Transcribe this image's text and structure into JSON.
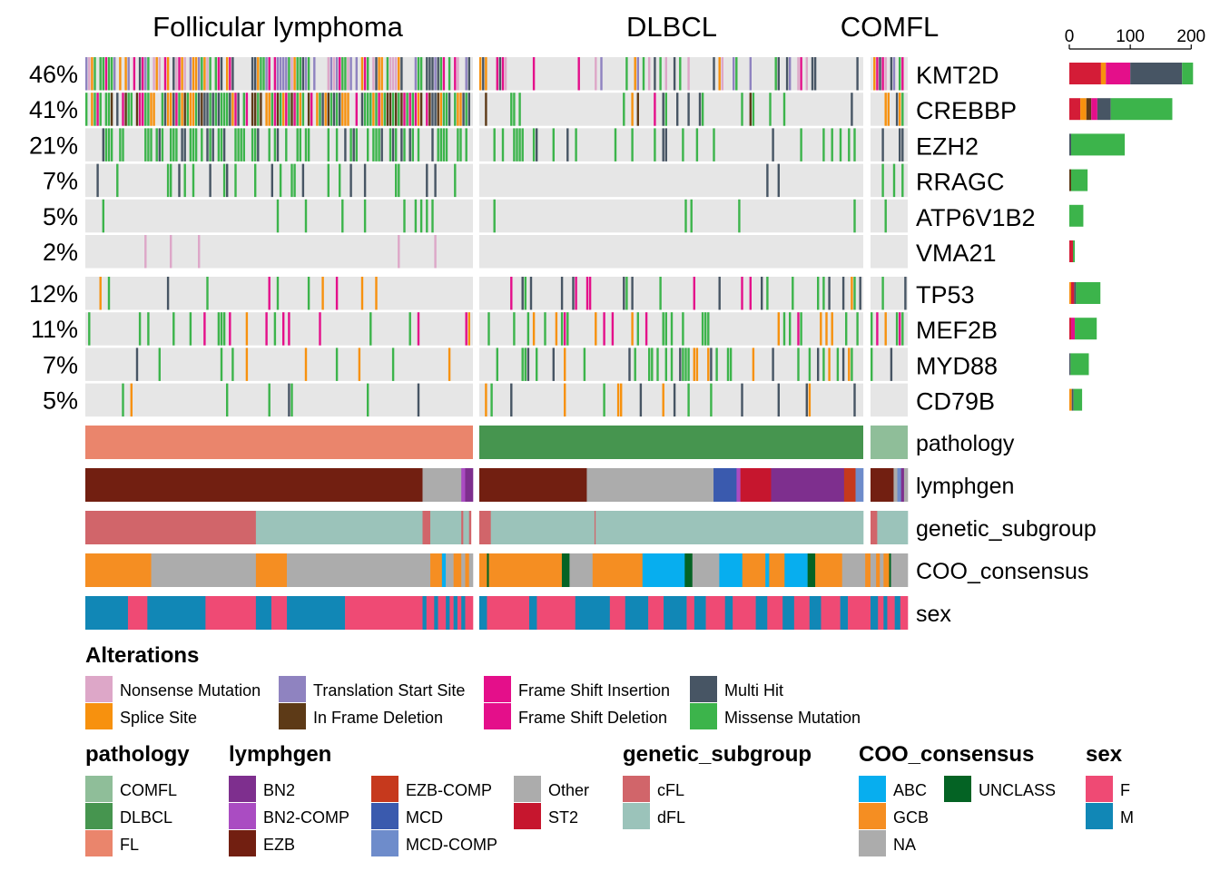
{
  "chart_data": {
    "type": "heatmap",
    "title": "",
    "column_groups": [
      "Follicular lymphoma",
      "DLBCL",
      "COMFL"
    ],
    "gene_blocks": [
      {
        "genes": [
          "KMT2D",
          "CREBBP",
          "EZH2",
          "RRAGC",
          "ATP6V1B2",
          "VMA21"
        ],
        "percent_labels": [
          "46%",
          "41%",
          "21%",
          "7%",
          "5%",
          "2%"
        ]
      },
      {
        "genes": [
          "TP53",
          "MEF2B",
          "MYD88",
          "CD79B"
        ],
        "percent_labels": [
          "12%",
          "11%",
          "7%",
          "5%"
        ]
      }
    ],
    "bar_axis": {
      "ticks": [
        0,
        100,
        200
      ],
      "tick_labels": [
        "0",
        "100",
        "200"
      ],
      "max": 210
    },
    "bar_counts": [
      {
        "gene": "KMT2D",
        "segments": [
          {
            "alteration": "Nonsense Mutation",
            "value": 0
          },
          {
            "alteration": "Missense Mutation",
            "value": 0
          },
          {
            "alteration": "Frame Shift Insertion",
            "value": 0
          },
          {
            "alteration": "Translation Start Site",
            "value": 0
          }
        ],
        "stack": [
          {
            "alteration": "ST2_red",
            "value": 52
          },
          {
            "alteration": "Splice Site",
            "value": 8
          },
          {
            "alteration": "Frame Shift Deletion",
            "value": 40
          },
          {
            "alteration": "Multi Hit",
            "value": 85
          },
          {
            "alteration": "Missense Mutation",
            "value": 18
          }
        ]
      },
      {
        "gene": "CREBBP",
        "stack": [
          {
            "alteration": "ST2_red",
            "value": 18
          },
          {
            "alteration": "Splice Site",
            "value": 10
          },
          {
            "alteration": "In Frame Deletion",
            "value": 8
          },
          {
            "alteration": "Frame Shift Deletion",
            "value": 10
          },
          {
            "alteration": "Multi Hit",
            "value": 22
          },
          {
            "alteration": "Missense Mutation",
            "value": 101
          }
        ]
      },
      {
        "gene": "EZH2",
        "stack": [
          {
            "alteration": "Multi Hit",
            "value": 3
          },
          {
            "alteration": "Missense Mutation",
            "value": 88
          }
        ]
      },
      {
        "gene": "RRAGC",
        "stack": [
          {
            "alteration": "In Frame Deletion",
            "value": 3
          },
          {
            "alteration": "Missense Mutation",
            "value": 27
          }
        ]
      },
      {
        "gene": "ATP6V1B2",
        "stack": [
          {
            "alteration": "Missense Mutation",
            "value": 23
          }
        ]
      },
      {
        "gene": "VMA21",
        "stack": [
          {
            "alteration": "ST2_red",
            "value": 6
          },
          {
            "alteration": "Missense Mutation",
            "value": 3
          }
        ]
      },
      {
        "gene": "TP53",
        "stack": [
          {
            "alteration": "Splice Site",
            "value": 3
          },
          {
            "alteration": "ST2_red",
            "value": 5
          },
          {
            "alteration": "Multi Hit",
            "value": 3
          },
          {
            "alteration": "Missense Mutation",
            "value": 40
          }
        ]
      },
      {
        "gene": "MEF2B",
        "stack": [
          {
            "alteration": "ST2_red",
            "value": 3
          },
          {
            "alteration": "Frame Shift Deletion",
            "value": 6
          },
          {
            "alteration": "Missense Mutation",
            "value": 36
          }
        ]
      },
      {
        "gene": "MYD88",
        "stack": [
          {
            "alteration": "Multi Hit",
            "value": 2
          },
          {
            "alteration": "Missense Mutation",
            "value": 30
          }
        ]
      },
      {
        "gene": "CD79B",
        "stack": [
          {
            "alteration": "Splice Site",
            "value": 4
          },
          {
            "alteration": "Multi Hit",
            "value": 3
          },
          {
            "alteration": "Missense Mutation",
            "value": 14
          }
        ]
      }
    ],
    "annotation_tracks": [
      "pathology",
      "lymphgen",
      "genetic_subgroup",
      "COO_consensus",
      "sex"
    ],
    "annotation_segments": {
      "pathology": [
        [
          "FL",
          "DLBCL",
          "COMFL"
        ]
      ],
      "lymphgen": [
        [
          [
            "EZB",
            0.87
          ],
          [
            "Other",
            0.1
          ],
          [
            "BN2-COMP",
            0.01
          ],
          [
            "BN2",
            0.02
          ]
        ],
        [
          [
            "EZB",
            0.28
          ],
          [
            "Other",
            0.33
          ],
          [
            "MCD",
            0.06
          ],
          [
            "BN2-COMP",
            0.01
          ],
          [
            "ST2",
            0.08
          ],
          [
            "BN2",
            0.19
          ],
          [
            "EZB-COMP",
            0.03
          ],
          [
            "MCD-COMP",
            0.02
          ]
        ],
        [
          [
            "EZB",
            0.62
          ],
          [
            "Other",
            0.1
          ],
          [
            "MCD-COMP",
            0.1
          ],
          [
            "BN2",
            0.08
          ],
          [
            "Other",
            0.1
          ]
        ]
      ],
      "genetic_subgroup": [
        [
          [
            "cFL",
            0.44
          ],
          [
            "dFL",
            0.43
          ],
          [
            "cFL",
            0.02
          ],
          [
            "dFL",
            0.08
          ],
          [
            "cFL",
            0.005
          ],
          [
            "dFL",
            0.015
          ],
          [
            "cFL",
            0.005
          ]
        ],
        [
          [
            "cFL",
            0.03
          ],
          [
            "dFL",
            0.27
          ],
          [
            "cFL",
            0.003
          ],
          [
            "dFL",
            0.697
          ]
        ],
        [
          [
            "cFL",
            0.18
          ],
          [
            "dFL",
            0.82
          ]
        ]
      ],
      "COO_consensus": [
        [
          [
            "GCB",
            0.17
          ],
          [
            "NA",
            0.27
          ],
          [
            "GCB",
            0.08
          ],
          [
            "NA",
            0.37
          ],
          [
            "GCB",
            0.03
          ],
          [
            "ABC",
            0.01
          ],
          [
            "NA",
            0.02
          ],
          [
            "GCB",
            0.02
          ],
          [
            "NA",
            0.01
          ],
          [
            "GCB",
            0.01
          ],
          [
            "NA",
            0.01
          ]
        ],
        [
          [
            "GCB",
            0.02
          ],
          [
            "UNCLASS",
            0.005
          ],
          [
            "GCB",
            0.19
          ],
          [
            "UNCLASS",
            0.02
          ],
          [
            "NA",
            0.06
          ],
          [
            "GCB",
            0.13
          ],
          [
            "ABC",
            0.11
          ],
          [
            "UNCLASS",
            0.02
          ],
          [
            "NA",
            0.07
          ],
          [
            "ABC",
            0.06
          ],
          [
            "GCB",
            0.06
          ],
          [
            "ABC",
            0.01
          ],
          [
            "GCB",
            0.04
          ],
          [
            "ABC",
            0.06
          ],
          [
            "UNCLASS",
            0.02
          ],
          [
            "GCB",
            0.07
          ],
          [
            "NA",
            0.06
          ],
          [
            "GCB",
            0.03
          ],
          [
            "NA",
            0.015
          ]
        ],
        [
          [
            "NA",
            0.15
          ],
          [
            "GCB",
            0.1
          ],
          [
            "NA",
            0.1
          ],
          [
            "GCB",
            0.15
          ],
          [
            "UNCLASS",
            0.05
          ],
          [
            "NA",
            0.45
          ]
        ]
      ],
      "sex": [
        [
          [
            "M",
            0.11
          ],
          [
            "F",
            0.05
          ],
          [
            "M",
            0.15
          ],
          [
            "F",
            0.13
          ],
          [
            "M",
            0.04
          ],
          [
            "F",
            0.04
          ],
          [
            "M",
            0.15
          ],
          [
            "F",
            0.2
          ],
          [
            "M",
            0.01
          ],
          [
            "F",
            0.02
          ],
          [
            "M",
            0.01
          ],
          [
            "F",
            0.02
          ],
          [
            "M",
            0.01
          ],
          [
            "F",
            0.01
          ],
          [
            "M",
            0.01
          ],
          [
            "F",
            0.01
          ],
          [
            "M",
            0.01
          ],
          [
            "F",
            0.02
          ]
        ],
        [
          [
            "M",
            0.02
          ],
          [
            "F",
            0.11
          ],
          [
            "M",
            0.02
          ],
          [
            "F",
            0.1
          ],
          [
            "M",
            0.09
          ],
          [
            "F",
            0.04
          ],
          [
            "M",
            0.06
          ],
          [
            "F",
            0.04
          ],
          [
            "M",
            0.06
          ],
          [
            "F",
            0.02
          ],
          [
            "M",
            0.03
          ],
          [
            "F",
            0.05
          ],
          [
            "M",
            0.02
          ],
          [
            "F",
            0.06
          ],
          [
            "M",
            0.03
          ],
          [
            "F",
            0.04
          ],
          [
            "M",
            0.03
          ],
          [
            "F",
            0.04
          ],
          [
            "M",
            0.03
          ],
          [
            "F",
            0.05
          ],
          [
            "M",
            0.02
          ],
          [
            "F",
            0.08
          ]
        ],
        [
          [
            "M",
            0.2
          ],
          [
            "F",
            0.15
          ],
          [
            "M",
            0.1
          ],
          [
            "F",
            0.2
          ],
          [
            "M",
            0.15
          ],
          [
            "F",
            0.2
          ]
        ]
      ]
    },
    "alteration_legend": {
      "title": "Alterations",
      "items": [
        {
          "label": "Nonsense Mutation",
          "color": "#dda7c8"
        },
        {
          "label": "Splice Site",
          "color": "#f7910e"
        },
        {
          "label": "Translation Start Site",
          "color": "#8f83c0"
        },
        {
          "label": "In Frame Deletion",
          "color": "#5d3a17"
        },
        {
          "label": "Frame Shift Insertion",
          "color": "#e40f8a"
        },
        {
          "label": "Frame Shift Deletion",
          "color": "#e40f8a"
        },
        {
          "label": "Multi Hit",
          "color": "#475564"
        },
        {
          "label": "Missense Mutation",
          "color": "#3cb44b"
        }
      ]
    },
    "annotation_legends": [
      {
        "title": "pathology",
        "items": [
          {
            "label": "COMFL",
            "color": "#8fbe99"
          },
          {
            "label": "DLBCL",
            "color": "#46954f"
          },
          {
            "label": "FL",
            "color": "#ea856c"
          }
        ]
      },
      {
        "title": "lymphgen",
        "items": [
          {
            "label": "BN2",
            "color": "#7e2f8e"
          },
          {
            "label": "BN2-COMP",
            "color": "#aa4cc2"
          },
          {
            "label": "EZB",
            "color": "#721f11"
          },
          {
            "label": "EZB-COMP",
            "color": "#c6391d"
          },
          {
            "label": "MCD",
            "color": "#3a5aae"
          },
          {
            "label": "MCD-COMP",
            "color": "#6e8ccb"
          },
          {
            "label": "Other",
            "color": "#acacac"
          },
          {
            "label": "ST2",
            "color": "#c6162e"
          }
        ]
      },
      {
        "title": "genetic_subgroup",
        "items": [
          {
            "label": "cFL",
            "color": "#d1656a"
          },
          {
            "label": "dFL",
            "color": "#9bc3ba"
          }
        ]
      },
      {
        "title": "COO_consensus",
        "items": [
          {
            "label": "ABC",
            "color": "#07aeef"
          },
          {
            "label": "GCB",
            "color": "#f58e22"
          },
          {
            "label": "NA",
            "color": "#acacac"
          },
          {
            "label": "UNCLASS",
            "color": "#046324"
          }
        ]
      },
      {
        "title": "sex",
        "items": [
          {
            "label": "F",
            "color": "#ef4a74"
          },
          {
            "label": "M",
            "color": "#1187b6"
          }
        ]
      }
    ],
    "colors": {
      "background": "#e6e6e6",
      "ST2_red": "#d41c37"
    }
  }
}
